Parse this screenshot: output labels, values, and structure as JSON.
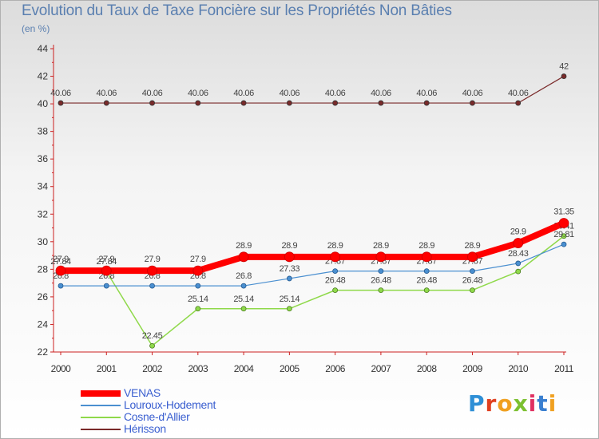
{
  "chart_data": {
    "type": "line",
    "title": "Evolution du Taux de Taxe Foncière sur les Propriétés Non Bâties",
    "subtitle": "(en %)",
    "xlabel": "",
    "ylabel": "(en %)",
    "x": [
      "2000",
      "2001",
      "2002",
      "2003",
      "2004",
      "2005",
      "2006",
      "2007",
      "2008",
      "2009",
      "2010",
      "2011"
    ],
    "ylim": [
      22,
      44
    ],
    "yticks": [
      "22",
      "24",
      "26",
      "28",
      "30",
      "32",
      "34",
      "36",
      "38",
      "40",
      "42",
      "44"
    ],
    "grid": false,
    "legend_position": "bottom-left",
    "series": [
      {
        "name": "Hérisson",
        "color": "#7a2a2a",
        "values": [
          40.06,
          40.06,
          40.06,
          40.06,
          40.06,
          40.06,
          40.06,
          40.06,
          40.06,
          40.06,
          40.06,
          42
        ],
        "labels": [
          "40.06",
          "40.06",
          "40.06",
          "40.06",
          "40.06",
          "40.06",
          "40.06",
          "40.06",
          "40.06",
          "40.06",
          "40.06",
          "42"
        ]
      },
      {
        "name": "Cosne-d'Allier",
        "color": "#8fd94a",
        "values": [
          27.84,
          27.84,
          22.45,
          25.14,
          25.14,
          25.14,
          26.48,
          26.48,
          26.48,
          26.48,
          27.84,
          30.41
        ],
        "labels": [
          "27.84",
          "27.84",
          "22.45",
          "25.14",
          "25.14",
          "25.14",
          "26.48",
          "26.48",
          "26.48",
          "26.48",
          "",
          "30.41"
        ]
      },
      {
        "name": "Louroux-Hodement",
        "color": "#4a8fd0",
        "values": [
          26.8,
          26.8,
          26.8,
          26.8,
          26.8,
          27.33,
          27.87,
          27.87,
          27.87,
          27.87,
          28.43,
          29.81
        ],
        "labels": [
          "26.8",
          "26.8",
          "26.8",
          "26.8",
          "26.8",
          "27.33",
          "27.87",
          "27.87",
          "27.87",
          "27.87",
          "28.43",
          "29.81"
        ]
      },
      {
        "name": "VENAS",
        "color": "#ff0000",
        "values": [
          27.9,
          27.9,
          27.9,
          27.9,
          28.9,
          28.9,
          28.9,
          28.9,
          28.9,
          28.9,
          29.9,
          31.35
        ],
        "labels": [
          "27.9",
          "27.9",
          "27.9",
          "27.9",
          "28.9",
          "28.9",
          "28.9",
          "28.9",
          "28.9",
          "28.9",
          "29.9",
          "31.35"
        ]
      }
    ]
  },
  "legend": {
    "items": [
      {
        "label": "VENAS",
        "color": "#ff0000"
      },
      {
        "label": "Louroux-Hodement",
        "color": "#4a8fd0"
      },
      {
        "label": "Cosne-d'Allier",
        "color": "#8fd94a"
      },
      {
        "label": "Hérisson",
        "color": "#7a2a2a"
      }
    ]
  },
  "logo": {
    "text": "Proxiti",
    "letters": [
      "P",
      "r",
      "o",
      "x",
      "i",
      "t",
      "i"
    ],
    "colors": [
      "#2e8fd6",
      "#e04020",
      "#f0a020",
      "#7cc030",
      "#e03060",
      "#3a7fd0",
      "#f0a020"
    ]
  }
}
